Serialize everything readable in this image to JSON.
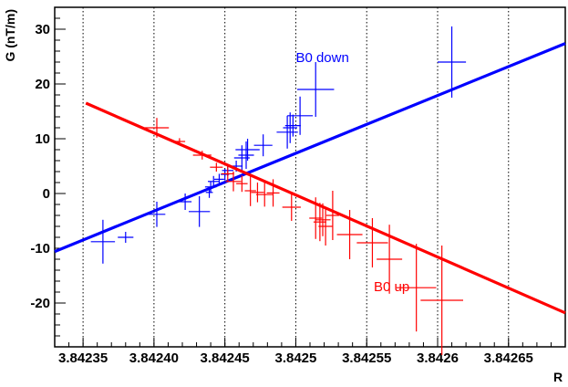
{
  "chart_data": {
    "type": "scatter",
    "xlabel": "R",
    "ylabel": "G (nT/m)",
    "xlim": [
      3.84233,
      3.84269
    ],
    "ylim": [
      -28,
      34
    ],
    "xticks": [
      3.84235,
      3.8424,
      3.84245,
      3.8425,
      3.84255,
      3.8426,
      3.84265
    ],
    "xtick_labels": [
      "3.84235",
      "3.84240",
      "3.84245",
      "3.8425",
      "3.84255",
      "3.8426",
      "3.84265"
    ],
    "yticks": [
      -20,
      -10,
      0,
      10,
      20,
      30
    ],
    "ytick_labels": [
      "-20",
      "-10",
      "0",
      "10",
      "20",
      "30"
    ],
    "grid": "vertical-dotted",
    "series": [
      {
        "name": "B0 down",
        "color": "#0000ff",
        "fit_line": {
          "x": [
            3.84233,
            3.84269
          ],
          "y": [
            -10.6,
            27.4
          ]
        },
        "label_pos": {
          "x": 3.8425,
          "y": 24
        },
        "points": [
          {
            "x": 3.842364,
            "y": -8.8,
            "xerr": 8.5e-06,
            "yerr": 4
          },
          {
            "x": 3.84238,
            "y": -8.0,
            "xerr": 5.5e-06,
            "yerr": 1
          },
          {
            "x": 3.842402,
            "y": -3.8,
            "xerr": 6e-06,
            "yerr": 2.3
          },
          {
            "x": 3.842422,
            "y": -1.5,
            "xerr": 4.5e-06,
            "yerr": 1.5
          },
          {
            "x": 3.842432,
            "y": -3.3,
            "xerr": 7.5e-06,
            "yerr": 2.8
          },
          {
            "x": 3.842439,
            "y": 0.2,
            "xerr": 2.5e-06,
            "yerr": 1
          },
          {
            "x": 3.84244,
            "y": 1.2,
            "xerr": 4e-06,
            "yerr": 1
          },
          {
            "x": 3.842442,
            "y": 2.2,
            "xerr": 4e-06,
            "yerr": 1
          },
          {
            "x": 3.842446,
            "y": 2.6,
            "xerr": 3.5e-06,
            "yerr": 1
          },
          {
            "x": 3.84245,
            "y": 3.5,
            "xerr": 3e-06,
            "yerr": 1
          },
          {
            "x": 3.842452,
            "y": 4.2,
            "xerr": 4e-06,
            "yerr": 1
          },
          {
            "x": 3.842458,
            "y": 5.0,
            "xerr": 4.5e-06,
            "yerr": 1
          },
          {
            "x": 3.842462,
            "y": 6.5,
            "xerr": 5.5e-06,
            "yerr": 2.3
          },
          {
            "x": 3.842465,
            "y": 7.0,
            "xerr": 5.5e-06,
            "yerr": 2.5
          },
          {
            "x": 3.842466,
            "y": 8.0,
            "xerr": 8.5e-06,
            "yerr": 2
          },
          {
            "x": 3.842477,
            "y": 8.8,
            "xerr": 6.5e-06,
            "yerr": 2
          },
          {
            "x": 3.842494,
            "y": 11.2,
            "xerr": 7.5e-06,
            "yerr": 3
          },
          {
            "x": 3.842496,
            "y": 12.0,
            "xerr": 5e-06,
            "yerr": 2.8
          },
          {
            "x": 3.842498,
            "y": 12.4,
            "xerr": 5.5e-06,
            "yerr": 2
          },
          {
            "x": 3.842503,
            "y": 14.2,
            "xerr": 9e-06,
            "yerr": 3.5
          },
          {
            "x": 3.842514,
            "y": 19.0,
            "xerr": 1.3e-05,
            "yerr": 5
          },
          {
            "x": 3.84261,
            "y": 24.0,
            "xerr": 1e-05,
            "yerr": 6.5
          }
        ]
      },
      {
        "name": "B0 up",
        "color": "#ff0000",
        "fit_line": {
          "x": [
            3.842352,
            3.84269
          ],
          "y": [
            16.5,
            -21.8
          ]
        },
        "label_pos": {
          "x": 3.842555,
          "y": -17.8
        },
        "points": [
          {
            "x": 3.842402,
            "y": 12.0,
            "xerr": 8.5e-06,
            "yerr": 1.8
          },
          {
            "x": 3.842418,
            "y": 9.5,
            "xerr": 4e-06,
            "yerr": 0.6
          },
          {
            "x": 3.842434,
            "y": 7.0,
            "xerr": 6.5e-06,
            "yerr": 0.8
          },
          {
            "x": 3.842444,
            "y": 4.8,
            "xerr": 4.5e-06,
            "yerr": 0.8
          },
          {
            "x": 3.842452,
            "y": 3.6,
            "xerr": 4.5e-06,
            "yerr": 1.5
          },
          {
            "x": 3.842456,
            "y": 2.2,
            "xerr": 5.5e-06,
            "yerr": 1.8
          },
          {
            "x": 3.842462,
            "y": 1.8,
            "xerr": 4e-06,
            "yerr": 1.5
          },
          {
            "x": 3.842468,
            "y": 0.5,
            "xerr": 4e-06,
            "yerr": 2.8
          },
          {
            "x": 3.842473,
            "y": 0.2,
            "xerr": 4.5e-06,
            "yerr": 1.8
          },
          {
            "x": 3.842478,
            "y": -0.2,
            "xerr": 6e-06,
            "yerr": 2.2
          },
          {
            "x": 3.842484,
            "y": 0.1,
            "xerr": 4.5e-06,
            "yerr": 2.5
          },
          {
            "x": 3.842497,
            "y": -2.5,
            "xerr": 6.5e-06,
            "yerr": 2.5
          },
          {
            "x": 3.842514,
            "y": -4.5,
            "xerr": 4.5e-06,
            "yerr": 3.8
          },
          {
            "x": 3.842517,
            "y": -5.2,
            "xerr": 4.5e-06,
            "yerr": 3.5
          },
          {
            "x": 3.842519,
            "y": -4.8,
            "xerr": 5.5e-06,
            "yerr": 3
          },
          {
            "x": 3.842521,
            "y": -6.0,
            "xerr": 5e-06,
            "yerr": 3.5
          },
          {
            "x": 3.842526,
            "y": -4.0,
            "xerr": 4.5e-06,
            "yerr": 4.5
          },
          {
            "x": 3.842538,
            "y": -7.5,
            "xerr": 9e-06,
            "yerr": 4.5
          },
          {
            "x": 3.842554,
            "y": -9.0,
            "xerr": 1.1e-05,
            "yerr": 4.5
          },
          {
            "x": 3.842566,
            "y": -12.0,
            "xerr": 9e-06,
            "yerr": 6.3
          },
          {
            "x": 3.842585,
            "y": -17.2,
            "xerr": 1.4e-05,
            "yerr": 8
          },
          {
            "x": 3.842603,
            "y": -19.5,
            "xerr": 1.5e-05,
            "yerr": 10
          }
        ]
      }
    ]
  }
}
